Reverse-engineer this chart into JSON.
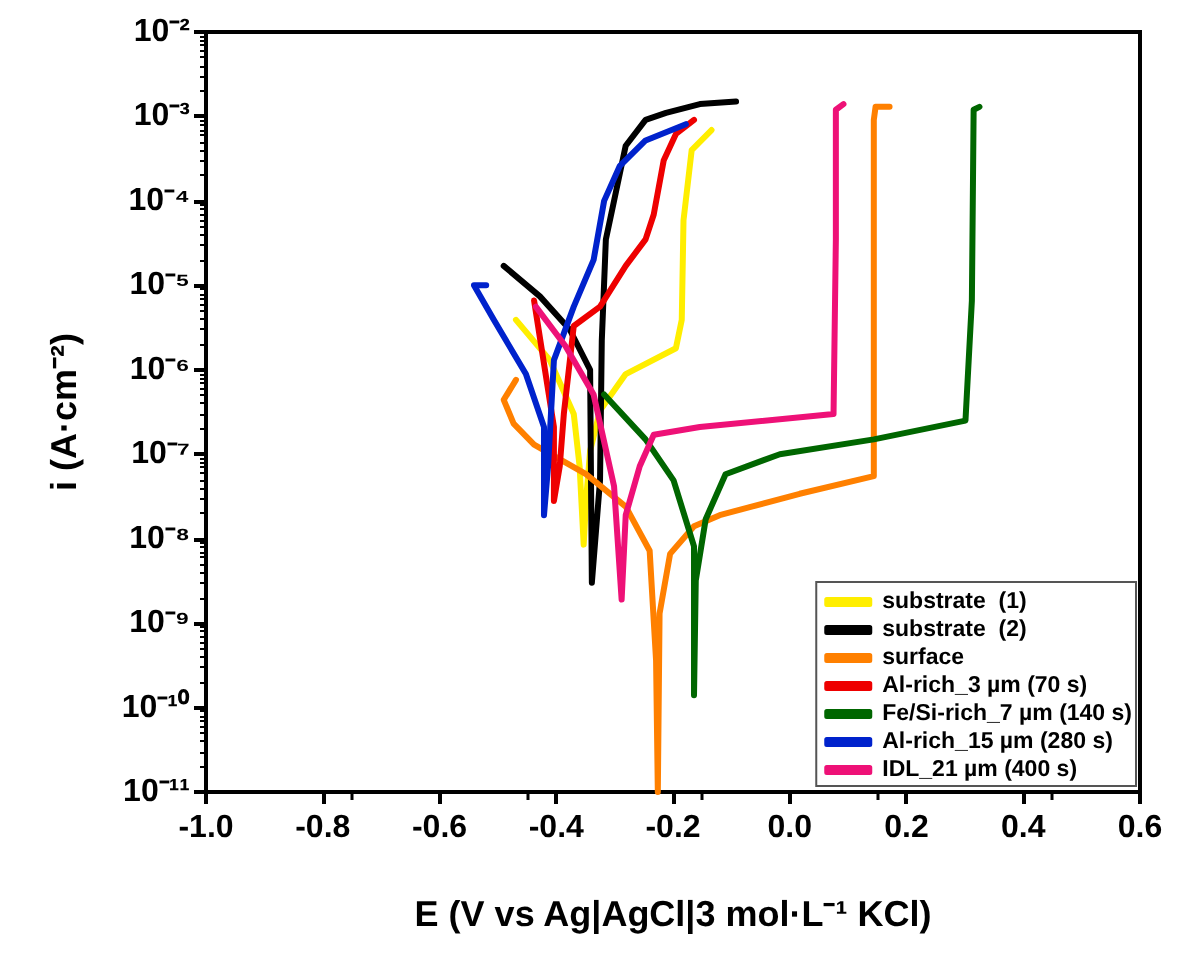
{
  "chart_data": {
    "type": "line",
    "xlabel": "E (V vs Ag|AgCl|3 mol·L⁻¹ KCl)",
    "ylabel": "i (A·cm⁻²)",
    "log": "y",
    "grid": false,
    "legend": "bottom right",
    "marker": "none",
    "line_style": "solid",
    "xlim": [
      -1.0,
      0.6
    ],
    "xticks": [
      {
        "value": -1.0,
        "label": "-1.0"
      },
      -0.8,
      -0.6,
      -0.4,
      -0.2,
      {
        "value": 0,
        "label": "0.0"
      },
      0.2,
      0.4,
      0.6
    ],
    "ylim": [
      1e-11,
      0.01
    ],
    "yticks": [
      {
        "value": 1e-11,
        "label": "10⁻¹¹"
      },
      {
        "value": 1e-10,
        "label": "10⁻¹⁰"
      },
      {
        "value": 1e-09,
        "label": "10⁻⁹"
      },
      {
        "value": 1e-08,
        "label": "10⁻⁸"
      },
      {
        "value": 1e-07,
        "label": "10⁻⁷"
      },
      {
        "value": 1e-06,
        "label": "10⁻⁶"
      },
      {
        "value": 1e-05,
        "label": "10⁻⁵"
      },
      {
        "value": 0.0001,
        "label": "10⁻⁴"
      },
      {
        "value": 0.001,
        "label": "10⁻³"
      },
      {
        "value": 0.01,
        "label": "10⁻²"
      }
    ],
    "series": [
      {
        "name": "substrate  (1)",
        "color": "#ffee00",
        "x": [
          -0.469,
          -0.411,
          -0.37,
          -0.36,
          -0.353,
          -0.349,
          -0.342,
          -0.325,
          -0.281,
          -0.195,
          -0.185,
          -0.182,
          -0.168,
          -0.134
        ],
        "values": [
          3.9e-06,
          1.3e-06,
          3e-07,
          7.2e-08,
          8.5e-09,
          2.8e-08,
          1.1e-07,
          3.3e-07,
          8.9e-07,
          1.8e-06,
          3.9e-06,
          5.9e-05,
          0.0004,
          0.00069
        ]
      },
      {
        "name": "substrate  (2)",
        "color": "#000000",
        "x": [
          -0.49,
          -0.428,
          -0.377,
          -0.342,
          -0.339,
          -0.325,
          -0.322,
          -0.315,
          -0.301,
          -0.281,
          -0.247,
          -0.212,
          -0.154,
          -0.092
        ],
        "values": [
          1.7e-05,
          7.4e-06,
          3e-06,
          1e-06,
          3e-09,
          4.9e-08,
          2.2e-06,
          3.5e-05,
          0.0001,
          0.00045,
          0.00091,
          0.0011,
          0.0014,
          0.0015
        ]
      },
      {
        "name": "surface",
        "color": "#ff8000",
        "x": [
          -0.469,
          -0.49,
          -0.473,
          -0.438,
          -0.349,
          -0.281,
          -0.24,
          -0.229,
          -0.226,
          -0.223,
          -0.205,
          -0.164,
          -0.12,
          0.017,
          0.144,
          0.144,
          0.147,
          0.171
        ],
        "values": [
          7.6e-07,
          4.4e-07,
          2.3e-07,
          1.3e-07,
          5.8e-08,
          2.4e-08,
          7.2e-09,
          3.6e-10,
          1e-11,
          1.3e-09,
          6.6e-09,
          1.4e-08,
          1.9e-08,
          3.4e-08,
          5.5e-08,
          0.00091,
          0.0013,
          0.0013
        ]
      },
      {
        "name": "Al-rich_3 µm (70 s)",
        "color": "#ee0000",
        "x": [
          -0.438,
          -0.404,
          -0.404,
          -0.394,
          -0.387,
          -0.37,
          -0.325,
          -0.281,
          -0.247,
          -0.233,
          -0.216,
          -0.195,
          -0.164
        ],
        "values": [
          6.6e-06,
          2.1e-07,
          2.8e-08,
          7.2e-08,
          3e-07,
          3.3e-06,
          5.6e-06,
          1.7e-05,
          3.5e-05,
          6.9e-05,
          0.0003,
          0.00062,
          0.00091
        ]
      },
      {
        "name": "Fe/Si-rich_7 µm (140 s)",
        "color": "#006600",
        "x": [
          -0.318,
          -0.247,
          -0.199,
          -0.164,
          -0.164,
          -0.161,
          -0.144,
          -0.11,
          -0.017,
          0.144,
          0.301,
          0.312,
          0.315,
          0.325
        ],
        "values": [
          5.1e-07,
          1.5e-07,
          4.9e-08,
          8.1e-09,
          1.4e-10,
          3.2e-09,
          1.7e-08,
          5.8e-08,
          1e-07,
          1.5e-07,
          2.5e-07,
          6.6e-06,
          0.0012,
          0.0013
        ]
      },
      {
        "name": "Al-rich_15 µm (280 s)",
        "color": "#0022cc",
        "x": [
          -0.52,
          -0.541,
          -0.507,
          -0.452,
          -0.421,
          -0.421,
          -0.414,
          -0.404,
          -0.37,
          -0.336,
          -0.318,
          -0.291,
          -0.247,
          -0.178
        ],
        "values": [
          1e-05,
          1e-05,
          3.9e-06,
          8.9e-07,
          2.1e-07,
          1.9e-08,
          7.2e-08,
          1.3e-06,
          5.6e-06,
          2e-05,
          0.0001,
          0.00026,
          0.00052,
          0.00081
        ]
      },
      {
        "name": "IDL_21 µm (400 s)",
        "color": "#ee1177",
        "x": [
          -0.435,
          -0.384,
          -0.336,
          -0.301,
          -0.288,
          -0.281,
          -0.257,
          -0.233,
          -0.154,
          0.075,
          0.079,
          0.079,
          0.092
        ],
        "values": [
          5.6e-06,
          1.9e-06,
          5.1e-07,
          4.2e-08,
          1.9e-09,
          1.9e-08,
          7.2e-08,
          1.7e-07,
          2.1e-07,
          3e-07,
          3.5e-05,
          0.0012,
          0.0014
        ]
      }
    ]
  }
}
